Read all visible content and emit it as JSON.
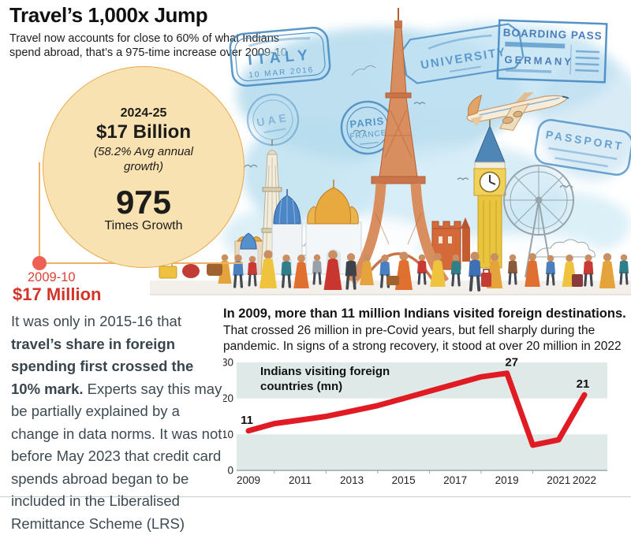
{
  "header": {
    "title": "Travel’s 1,000x Jump",
    "subtitle": "Travel now accounts for close to 60% of what Indians spend abroad, that’s a 975-time increase over 2009-10"
  },
  "bubble": {
    "period": "2024-25",
    "amount": "$17 Billion",
    "growth_note": "(58.2% Avg annual growth)",
    "multiplier": "975",
    "multiplier_label": "Times Growth",
    "fill": "#f9e2b2",
    "border": "#e9a94f"
  },
  "baseline_point": {
    "period": "2009-10",
    "amount": "$17 Million",
    "dot_color": "#ee6053",
    "line_color": "#efb166",
    "period_color": "#dc4237",
    "amount_color": "#d2342a"
  },
  "left_note": {
    "lead": "It was only in 2015-16 that ",
    "bold": "travel’s share in foreign spending first crossed the 10% mark.",
    "rest": " Experts say this may be partially explained by a change in data norms. It was not before May 2023 that credit card spends abroad began to be included in the Liberalised Remittance Scheme (LRS)"
  },
  "chart_intro": {
    "bold": "In 2009, more than 11 million Indians visited foreign destinations.",
    "rest": " That crossed 26 million in pre-Covid years, but fell sharply during the pandemic. In signs of a strong recovery, it stood at over 20 million in 2022"
  },
  "chart_data": {
    "type": "line",
    "title": "Indians visiting foreign countries (mn)",
    "x": [
      2009,
      2010,
      2011,
      2012,
      2013,
      2014,
      2015,
      2016,
      2017,
      2018,
      2019,
      2020,
      2021,
      2022
    ],
    "values": [
      11,
      13,
      14,
      15,
      16.5,
      18,
      20,
      22,
      24,
      26,
      27,
      7,
      8.5,
      21
    ],
    "annotations": [
      {
        "year": 2009,
        "label": "11",
        "dx": -2
      },
      {
        "year": 2019,
        "label": "27",
        "dx": 6
      },
      {
        "year": 2022,
        "label": "21",
        "dx": -2
      }
    ],
    "ylim": [
      0,
      30
    ],
    "yticks": [
      0,
      10,
      20,
      30
    ],
    "xtick_labels": [
      "2009",
      "2011",
      "2013",
      "2015",
      "2017",
      "2019",
      "2021",
      "2022"
    ],
    "line_color": "#e11b23",
    "band_color": "#dfe9e7",
    "grid": "banded",
    "legend": "none"
  },
  "illustration": {
    "stamps": {
      "italy": {
        "name": "ITALY",
        "date": "10 MAR 2016"
      },
      "uae": {
        "name": "UAE"
      },
      "paris": {
        "line1": "PARIS",
        "line2": "FRANCE"
      },
      "university": {
        "name": "UNIVERSITY"
      },
      "boarding": {
        "line1": "BOARDING PASS",
        "line2": "GERMANY"
      },
      "passport": {
        "name": "PASSPORT"
      }
    }
  }
}
